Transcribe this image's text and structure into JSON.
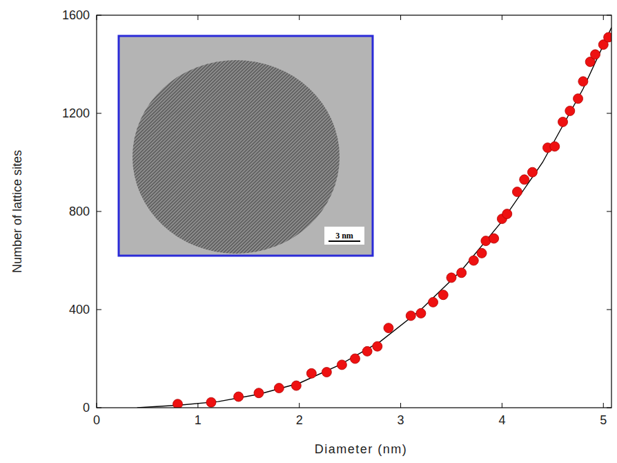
{
  "chart_data": {
    "type": "scatter",
    "x_label": "Diameter (nm)",
    "y_label": "Number of lattice sites",
    "annotation": "3 nm",
    "xlim": [
      0,
      5.08
    ],
    "xticks": [
      0,
      1,
      2,
      3,
      4,
      5
    ],
    "ylim": [
      0,
      1600
    ],
    "yticks": [
      0,
      400,
      800,
      1200,
      1600
    ],
    "grid": false,
    "series": [
      {
        "type": "scatter",
        "color": "#ee1111",
        "marker": "circle",
        "x": [
          0.8,
          1.13,
          1.4,
          1.6,
          1.8,
          1.97,
          2.12,
          2.27,
          2.42,
          2.55,
          2.67,
          2.77,
          2.88,
          3.1,
          3.2,
          3.32,
          3.42,
          3.5,
          3.6,
          3.72,
          3.8,
          3.84,
          3.92,
          4.0,
          4.05,
          4.15,
          4.22,
          4.3,
          4.45,
          4.52,
          4.6,
          4.67,
          4.75,
          4.8,
          4.87,
          4.92,
          5.0,
          5.05
        ],
        "values": [
          15,
          22,
          45,
          60,
          80,
          90,
          140,
          145,
          175,
          200,
          230,
          250,
          325,
          375,
          385,
          430,
          460,
          530,
          550,
          600,
          630,
          680,
          690,
          770,
          790,
          880,
          930,
          960,
          1060,
          1065,
          1165,
          1210,
          1260,
          1330,
          1410,
          1440,
          1480,
          1510
        ]
      },
      {
        "type": "line",
        "color": "#000000",
        "line_style": "solid",
        "x": [
          0.4,
          0.8,
          1.2,
          1.6,
          2.0,
          2.4,
          2.8,
          3.2,
          3.6,
          4.0,
          4.4,
          4.8,
          5.08
        ],
        "values": [
          0,
          10,
          25,
          55,
          100,
          175,
          270,
          400,
          560,
          760,
          1000,
          1300,
          1550
        ]
      }
    ]
  }
}
